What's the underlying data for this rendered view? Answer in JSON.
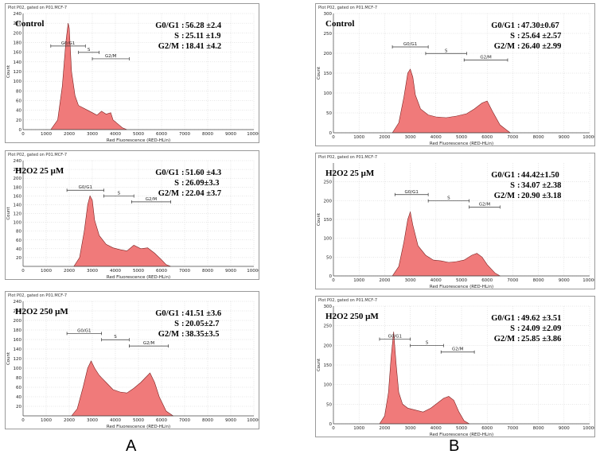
{
  "figure": {
    "label_a": "A",
    "label_b": "B"
  },
  "chart_data": [
    {
      "type": "area",
      "column": "A",
      "panel_title": "Plot P02, gated on P01.MCF-7",
      "condition": "Control",
      "stats": [
        {
          "label": "G0/G1",
          "value": "56.28 ±2.4"
        },
        {
          "label": "S",
          "value": "25.11 ±1.9"
        },
        {
          "label": "G2/M",
          "value": "18.41 ±4.2"
        }
      ],
      "xlabel": "Red Fluorescence (RED-HLin)",
      "ylabel": "Count",
      "xlim": [
        0,
        10000
      ],
      "xticks": [
        0,
        1000,
        2000,
        3000,
        4000,
        5000,
        6000,
        7000,
        8000,
        9000,
        10000
      ],
      "ylim": [
        0,
        240
      ],
      "yticks": [
        0,
        20,
        40,
        60,
        80,
        100,
        120,
        140,
        160,
        180,
        200,
        220,
        240
      ],
      "gates": [
        {
          "name": "G0/G1",
          "x0": 1200,
          "x1": 2700
        },
        {
          "name": "S",
          "x0": 2400,
          "x1": 3300
        },
        {
          "name": "G2/M",
          "x0": 3000,
          "x1": 4600
        }
      ],
      "x": [
        1200,
        1500,
        1700,
        1850,
        1950,
        2000,
        2100,
        2250,
        2400,
        2600,
        2800,
        3000,
        3200,
        3400,
        3600,
        3800,
        3900,
        4100,
        4300,
        4500
      ],
      "y": [
        0,
        20,
        90,
        180,
        220,
        210,
        120,
        70,
        50,
        45,
        40,
        35,
        30,
        38,
        32,
        35,
        20,
        12,
        4,
        0
      ]
    },
    {
      "type": "area",
      "column": "A",
      "panel_title": "Plot P02, gated on P01.MCF-7",
      "condition": "H2O2 25 μM",
      "stats": [
        {
          "label": "G0/G1",
          "value": "51.60 ±4.3"
        },
        {
          "label": "S",
          "value": "26.09±3.3"
        },
        {
          "label": "G2/M",
          "value": "22.04 ±3.7"
        }
      ],
      "xlabel": "Red Fluorescence (RED-HLin)",
      "ylabel": "Count",
      "xlim": [
        0,
        10000
      ],
      "xticks": [
        0,
        1000,
        2000,
        3000,
        4000,
        5000,
        6000,
        7000,
        8000,
        9000,
        10000
      ],
      "ylim": [
        0,
        240
      ],
      "yticks": [
        20,
        40,
        60,
        80,
        100,
        120,
        140,
        160,
        180,
        200,
        220,
        240
      ],
      "gates": [
        {
          "name": "G0/G1",
          "x0": 1900,
          "x1": 3500
        },
        {
          "name": "S",
          "x0": 3500,
          "x1": 4800
        },
        {
          "name": "G2/M",
          "x0": 4700,
          "x1": 6400
        }
      ],
      "x": [
        2200,
        2450,
        2650,
        2800,
        2900,
        3000,
        3100,
        3300,
        3600,
        3900,
        4200,
        4500,
        4800,
        5100,
        5400,
        5700,
        6000,
        6200,
        6400
      ],
      "y": [
        0,
        20,
        80,
        140,
        160,
        150,
        105,
        70,
        50,
        42,
        38,
        35,
        48,
        40,
        42,
        30,
        15,
        4,
        0
      ]
    },
    {
      "type": "area",
      "column": "A",
      "panel_title": "Plot P02, gated on P01.MCF-7",
      "condition": "H2O2 250 μM",
      "stats": [
        {
          "label": "G0/G1",
          "value": "41.51 ±3.6"
        },
        {
          "label": "S",
          "value": "20.05±2.7"
        },
        {
          "label": "G2/M",
          "value": "38.35±3.5"
        }
      ],
      "xlabel": "Red Fluorescence (RED-HLin)",
      "ylabel": "Count",
      "xlim": [
        0,
        10000
      ],
      "xticks": [
        0,
        1000,
        2000,
        3000,
        4000,
        5000,
        6000,
        7000,
        8000,
        9000,
        10000
      ],
      "ylim": [
        0,
        240
      ],
      "yticks": [
        20,
        40,
        60,
        80,
        100,
        120,
        140,
        160,
        180,
        200,
        220,
        240
      ],
      "gates": [
        {
          "name": "G0/G1",
          "x0": 1900,
          "x1": 3400
        },
        {
          "name": "S",
          "x0": 3400,
          "x1": 4600
        },
        {
          "name": "G2/M",
          "x0": 4600,
          "x1": 6300
        }
      ],
      "x": [
        2100,
        2350,
        2600,
        2800,
        2950,
        3100,
        3300,
        3600,
        3900,
        4200,
        4500,
        4800,
        5100,
        5300,
        5500,
        5700,
        5900,
        6200,
        6500
      ],
      "y": [
        0,
        15,
        60,
        100,
        115,
        100,
        85,
        70,
        55,
        50,
        48,
        58,
        70,
        80,
        90,
        70,
        40,
        10,
        0
      ]
    },
    {
      "type": "area",
      "column": "B",
      "panel_title": "Plot P02, gated on P01.MCF-7",
      "condition": "Control",
      "stats": [
        {
          "label": "G0/G1",
          "value": "47.30±0.67"
        },
        {
          "label": "S",
          "value": "25.64 ±2.57"
        },
        {
          "label": "G2/M",
          "value": "26.40 ±2.99"
        }
      ],
      "xlabel": "Red Fluorescence (RED-HLin)",
      "ylabel": "Count",
      "xlim": [
        0,
        10000
      ],
      "xticks": [
        0,
        1000,
        2000,
        3000,
        4000,
        5000,
        6000,
        7000,
        8000,
        9000,
        10000
      ],
      "ylim": [
        0,
        300
      ],
      "yticks": [
        0,
        50,
        100,
        150,
        200,
        250,
        300
      ],
      "gates": [
        {
          "name": "G0/G1",
          "x0": 2300,
          "x1": 3700
        },
        {
          "name": "S",
          "x0": 3600,
          "x1": 5200
        },
        {
          "name": "G2/M",
          "x0": 5100,
          "x1": 6800
        }
      ],
      "x": [
        2300,
        2550,
        2750,
        2900,
        3000,
        3100,
        3200,
        3400,
        3700,
        4000,
        4400,
        4800,
        5200,
        5500,
        5800,
        6000,
        6200,
        6500,
        6900
      ],
      "y": [
        0,
        25,
        90,
        150,
        160,
        140,
        95,
        60,
        45,
        40,
        38,
        42,
        48,
        60,
        75,
        80,
        55,
        20,
        0
      ]
    },
    {
      "type": "area",
      "column": "B",
      "panel_title": "Plot P02, gated on P01.MCF-7",
      "condition": "H2O2 25 μM",
      "stats": [
        {
          "label": "G0/G1",
          "value": "44.42±1.50"
        },
        {
          "label": "S",
          "value": "34.07 ±2.38"
        },
        {
          "label": "G2/M",
          "value": "20.90 ±3.18"
        }
      ],
      "xlabel": "Red Fluorescence (RED-HLin)",
      "ylabel": "Count",
      "xlim": [
        0,
        10000
      ],
      "xticks": [
        0,
        1000,
        2000,
        3000,
        4000,
        5000,
        6000,
        7000,
        8000,
        9000,
        10000
      ],
      "ylim": [
        0,
        300
      ],
      "yticks": [
        0,
        50,
        100,
        150,
        200,
        250
      ],
      "gates": [
        {
          "name": "G0/G1",
          "x0": 2400,
          "x1": 3700
        },
        {
          "name": "S",
          "x0": 3700,
          "x1": 5300
        },
        {
          "name": "G2/M",
          "x0": 5300,
          "x1": 6500
        }
      ],
      "x": [
        2300,
        2550,
        2750,
        2900,
        3000,
        3100,
        3300,
        3600,
        3900,
        4200,
        4500,
        4800,
        5100,
        5400,
        5600,
        5800,
        6000,
        6300,
        6500
      ],
      "y": [
        0,
        25,
        90,
        150,
        170,
        135,
        80,
        55,
        42,
        40,
        36,
        38,
        42,
        55,
        60,
        50,
        30,
        8,
        0
      ]
    },
    {
      "type": "area",
      "column": "B",
      "panel_title": "Plot P02, gated on P01.MCF-7",
      "condition": "H2O2 250 μM",
      "stats": [
        {
          "label": "G0/G1",
          "value": "49.62 ±3.51"
        },
        {
          "label": "S",
          "value": "24.09 ±2.09"
        },
        {
          "label": "G2/M",
          "value": "25.85 ±3.86"
        }
      ],
      "xlabel": "Red Fluorescence (RED-HLin)",
      "ylabel": "Count",
      "xlim": [
        0,
        10000
      ],
      "xticks": [
        0,
        1000,
        2000,
        3000,
        4000,
        5000,
        6000,
        7000,
        8000,
        9000,
        10000
      ],
      "ylim": [
        0,
        300
      ],
      "yticks": [
        0,
        50,
        100,
        150,
        200,
        250,
        300
      ],
      "gates": [
        {
          "name": "G0/G1",
          "x0": 1800,
          "x1": 3000
        },
        {
          "name": "S",
          "x0": 3000,
          "x1": 4300
        },
        {
          "name": "G2/M",
          "x0": 4200,
          "x1": 5500
        }
      ],
      "x": [
        1800,
        2000,
        2150,
        2250,
        2350,
        2450,
        2550,
        2700,
        2900,
        3200,
        3500,
        3800,
        4100,
        4300,
        4500,
        4700,
        4900,
        5100,
        5300
      ],
      "y": [
        0,
        20,
        80,
        170,
        235,
        150,
        80,
        50,
        40,
        35,
        30,
        40,
        55,
        65,
        70,
        60,
        30,
        8,
        0
      ]
    }
  ]
}
